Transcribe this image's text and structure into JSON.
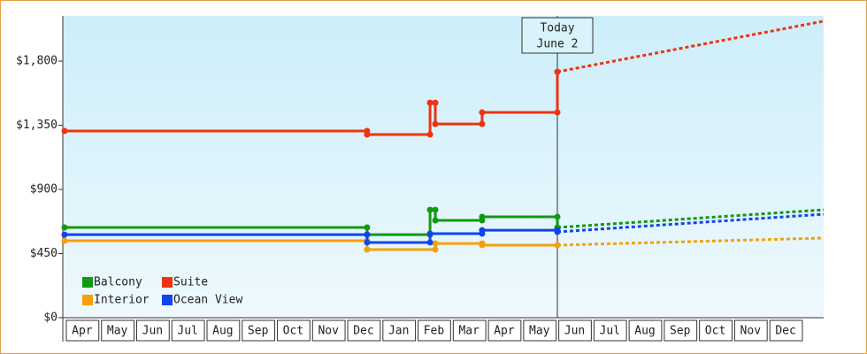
{
  "chart_data": {
    "type": "step-line",
    "ylim": [
      0,
      2117
    ],
    "yticks": [
      {
        "value": 0,
        "label": "$0"
      },
      {
        "value": 450,
        "label": "$450"
      },
      {
        "value": 900,
        "label": "$900"
      },
      {
        "value": 1350,
        "label": "$1,350"
      },
      {
        "value": 1800,
        "label": "$1,800"
      }
    ],
    "xlim": [
      -0.05,
      21.58
    ],
    "xticks": [
      {
        "value": 0.5,
        "label": "Apr"
      },
      {
        "value": 1.5,
        "label": "May"
      },
      {
        "value": 2.5,
        "label": "Jun"
      },
      {
        "value": 3.5,
        "label": "Jul"
      },
      {
        "value": 4.5,
        "label": "Aug"
      },
      {
        "value": 5.5,
        "label": "Sep"
      },
      {
        "value": 6.5,
        "label": "Oct"
      },
      {
        "value": 7.5,
        "label": "Nov"
      },
      {
        "value": 8.5,
        "label": "Dec"
      },
      {
        "value": 9.5,
        "label": "Jan"
      },
      {
        "value": 10.5,
        "label": "Feb"
      },
      {
        "value": 11.5,
        "label": "Mar"
      },
      {
        "value": 12.5,
        "label": "Apr"
      },
      {
        "value": 13.5,
        "label": "May"
      },
      {
        "value": 14.5,
        "label": "Jun"
      },
      {
        "value": 15.5,
        "label": "Jul"
      },
      {
        "value": 16.5,
        "label": "Aug"
      },
      {
        "value": 17.5,
        "label": "Sep"
      },
      {
        "value": 18.5,
        "label": "Oct"
      },
      {
        "value": 19.5,
        "label": "Nov"
      },
      {
        "value": 20.5,
        "label": "Dec"
      }
    ],
    "today_marker": {
      "x": 14.01,
      "label": "Today",
      "date": "June 2"
    },
    "legend": "bottom-left",
    "series": [
      {
        "name": "Balcony",
        "color": "#119911",
        "x": [
          0,
          8.6,
          8.6,
          10.39,
          10.39,
          10.54,
          10.54,
          11.87,
          11.87,
          14.01,
          14.01
        ],
        "values": [
          633,
          633,
          583,
          583,
          757,
          757,
          683,
          683,
          708,
          708,
          633
        ],
        "forecast": {
          "x": [
            14.01,
            21.58
          ],
          "values": [
            633,
            757
          ]
        }
      },
      {
        "name": "Suite",
        "color": "#ee3311",
        "x": [
          0,
          8.6,
          8.6,
          10.39,
          10.39,
          10.54,
          10.54,
          11.87,
          11.87,
          14.01,
          14.01
        ],
        "values": [
          1310,
          1310,
          1285,
          1285,
          1508,
          1508,
          1359,
          1359,
          1440,
          1440,
          1725
        ],
        "forecast": {
          "x": [
            14.01,
            21.58
          ],
          "values": [
            1725,
            2080
          ]
        }
      },
      {
        "name": "Interior",
        "color": "#f5a00a",
        "x": [
          0,
          8.6,
          8.6,
          10.54,
          10.54,
          11.87,
          11.87,
          14.01
        ],
        "values": [
          540,
          540,
          478,
          478,
          521,
          521,
          509,
          509
        ],
        "forecast": {
          "x": [
            14.01,
            21.58
          ],
          "values": [
            509,
            559
          ]
        }
      },
      {
        "name": "Ocean View",
        "color": "#1144ee",
        "x": [
          0,
          8.6,
          8.6,
          10.39,
          10.39,
          11.87,
          11.87,
          14.01,
          14.01
        ],
        "values": [
          583,
          583,
          528,
          528,
          590,
          590,
          614,
          614,
          602
        ],
        "forecast": {
          "x": [
            14.01,
            21.58
          ],
          "values": [
            602,
            726
          ]
        }
      }
    ]
  }
}
